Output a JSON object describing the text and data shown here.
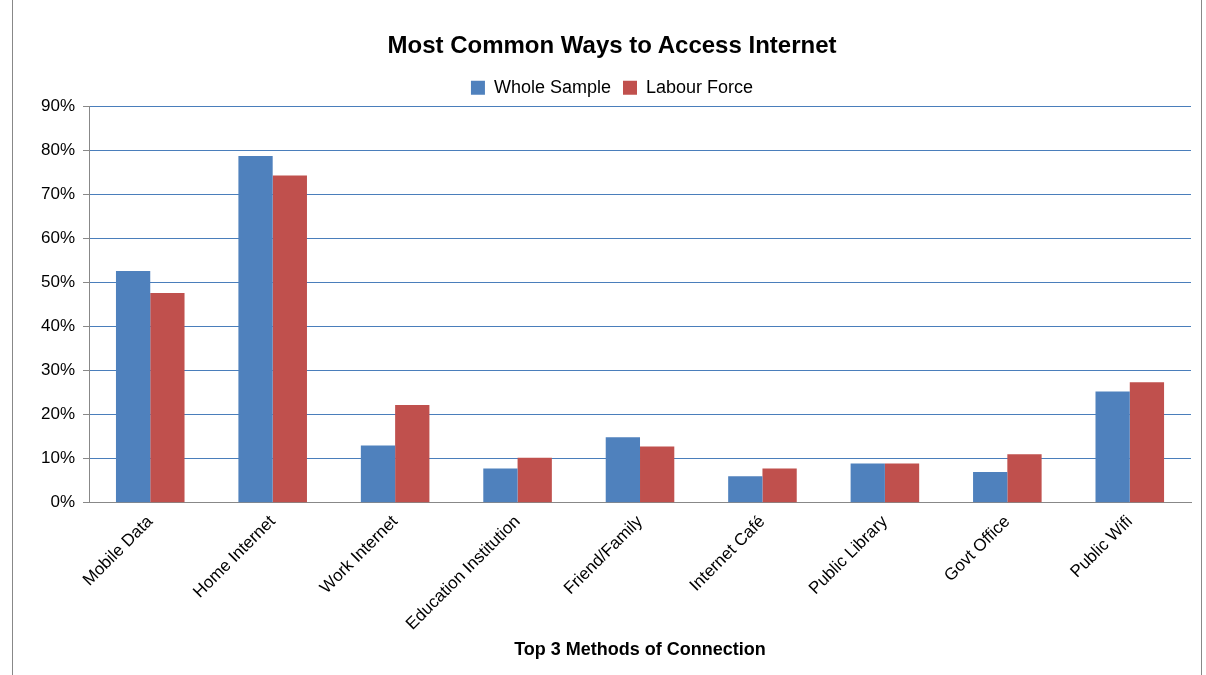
{
  "chart_data": {
    "type": "bar",
    "title": "Most Common Ways to Access Internet",
    "xlabel": "Top 3 Methods of Connection",
    "categories": [
      "Mobile Data",
      "Home Internet",
      "Work Internet",
      "Education Institution",
      "Friend/Family",
      "Internet Café",
      "Public Library",
      "Govt Office",
      "Public Wifi"
    ],
    "series": [
      {
        "name": "Whole Sample",
        "color": "#4f81bd",
        "values": [
          52.7,
          78.8,
          13.0,
          7.8,
          14.9,
          6.0,
          8.9,
          7.0,
          25.3
        ]
      },
      {
        "name": "Labour Force",
        "color": "#c0504d",
        "values": [
          47.7,
          74.4,
          22.2,
          10.2,
          12.8,
          7.8,
          8.9,
          11.0,
          27.4
        ]
      }
    ],
    "ylim": [
      0,
      90
    ],
    "yticks": [
      {
        "value": 0,
        "label": "0%"
      },
      {
        "value": 10,
        "label": "10%"
      },
      {
        "value": 20,
        "label": "20%"
      },
      {
        "value": 30,
        "label": "30%"
      },
      {
        "value": 40,
        "label": "40%"
      },
      {
        "value": 50,
        "label": "50%"
      },
      {
        "value": 60,
        "label": "60%"
      },
      {
        "value": 70,
        "label": "70%"
      },
      {
        "value": 80,
        "label": "80%"
      },
      {
        "value": 90,
        "label": "90%"
      }
    ],
    "grid": "y",
    "legend": "top"
  }
}
